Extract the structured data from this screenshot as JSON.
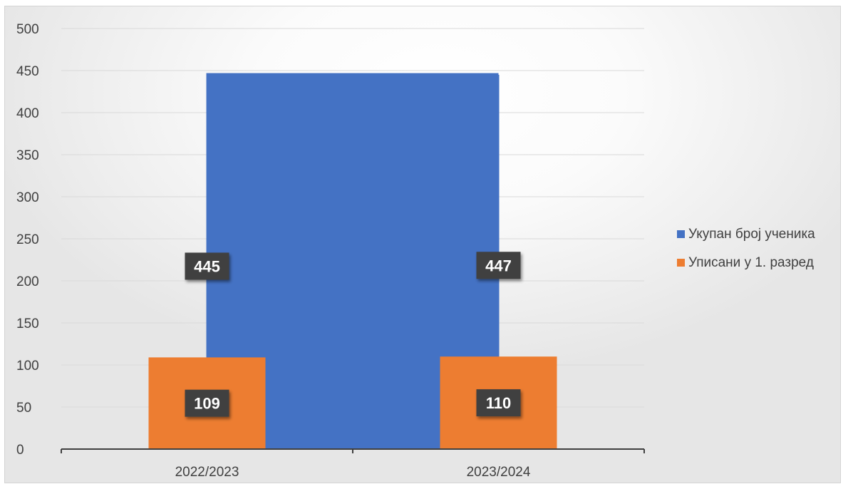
{
  "chart_data": {
    "type": "bar",
    "categories": [
      "2022/2023",
      "2023/2024"
    ],
    "series": [
      {
        "name": "Укупан број ученика",
        "values": [
          445,
          447
        ],
        "color": "#4472C4"
      },
      {
        "name": "Уписани у 1. разред",
        "values": [
          109,
          110
        ],
        "color": "#ED7D31"
      }
    ],
    "ylim": [
      0,
      500
    ],
    "yticks": [
      0,
      50,
      100,
      150,
      200,
      250,
      300,
      350,
      400,
      450,
      500
    ],
    "grid": true,
    "legend": "right",
    "data_labels": true
  }
}
